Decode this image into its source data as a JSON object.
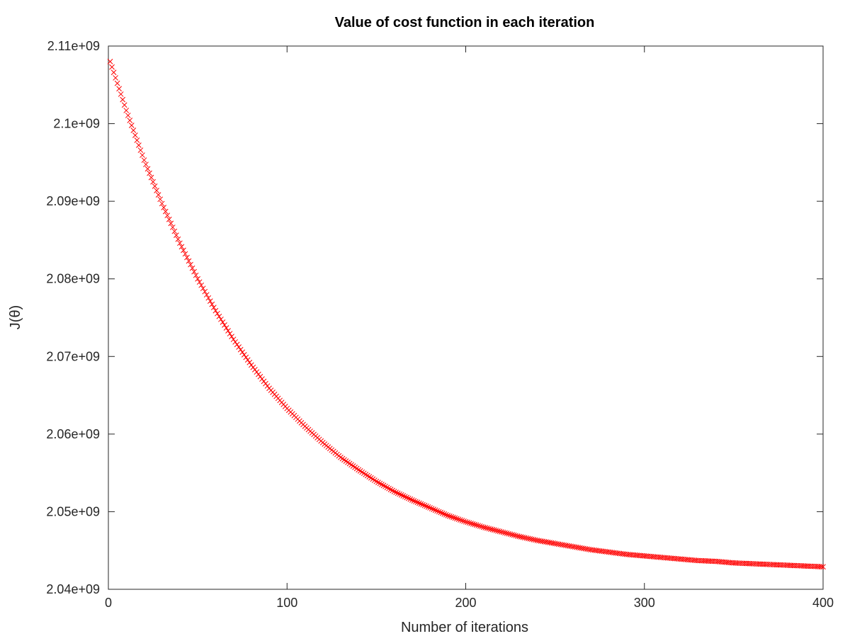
{
  "chart_data": {
    "type": "scatter",
    "title": "Value of cost function in each iteration",
    "xlabel": "Number of iterations",
    "ylabel": "J(θ)",
    "xlim": [
      0,
      400
    ],
    "ylim": [
      2040000000,
      2110000000
    ],
    "x_ticks": [
      0,
      100,
      200,
      300,
      400
    ],
    "x_tick_labels": [
      "0",
      "100",
      "200",
      "300",
      "400"
    ],
    "y_ticks": [
      2040000000,
      2050000000,
      2060000000,
      2070000000,
      2080000000,
      2090000000,
      2100000000,
      2110000000
    ],
    "y_tick_labels": [
      "2.04e+09",
      "2.05e+09",
      "2.06e+09",
      "2.07e+09",
      "2.08e+09",
      "2.09e+09",
      "2.1e+09",
      "2.11e+09"
    ],
    "grid": false,
    "legend": "none",
    "marker": "x",
    "series": [
      {
        "color": "#ff0000",
        "x": [
          1,
          10,
          20,
          30,
          40,
          50,
          60,
          70,
          80,
          90,
          100,
          110,
          120,
          130,
          140,
          150,
          160,
          170,
          180,
          190,
          200,
          210,
          220,
          230,
          240,
          250,
          260,
          270,
          280,
          290,
          300,
          310,
          320,
          330,
          340,
          350,
          360,
          370,
          380,
          390,
          400
        ],
        "y": [
          2108000000,
          2101700000,
          2095300000,
          2089700000,
          2084600000,
          2080000000,
          2075900000,
          2072200000,
          2068900000,
          2065900000,
          2063300000,
          2061000000,
          2058900000,
          2057000000,
          2055400000,
          2053900000,
          2052600000,
          2051500000,
          2050500000,
          2049500000,
          2048700000,
          2048000000,
          2047400000,
          2046800000,
          2046300000,
          2045900000,
          2045500000,
          2045100000,
          2044800000,
          2044500000,
          2044300000,
          2044100000,
          2043900000,
          2043700000,
          2043600000,
          2043400000,
          2043300000,
          2043200000,
          2043100000,
          2043000000,
          2042900000
        ]
      }
    ]
  }
}
